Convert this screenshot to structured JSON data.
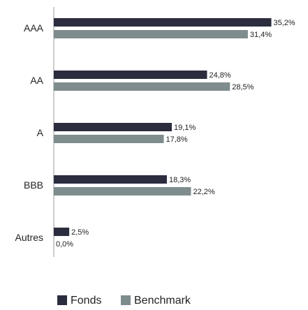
{
  "chart_data": {
    "type": "bar",
    "orientation": "horizontal",
    "categories": [
      "AAA",
      "AA",
      "A",
      "BBB",
      "Autres"
    ],
    "series": [
      {
        "name": "Fonds",
        "color": "#2b2d3e",
        "values": [
          35.2,
          24.8,
          19.1,
          18.3,
          2.5
        ],
        "value_labels": [
          "35,2%",
          "24,8%",
          "19,1%",
          "18,3%",
          "2,5%"
        ]
      },
      {
        "name": "Benchmark",
        "color": "#7f8c8d",
        "values": [
          31.4,
          28.5,
          17.8,
          22.2,
          0.0
        ],
        "value_labels": [
          "31,4%",
          "28,5%",
          "17,8%",
          "22,2%",
          "0,0%"
        ]
      }
    ],
    "xlim": [
      0,
      40
    ],
    "legend": "bottom"
  }
}
